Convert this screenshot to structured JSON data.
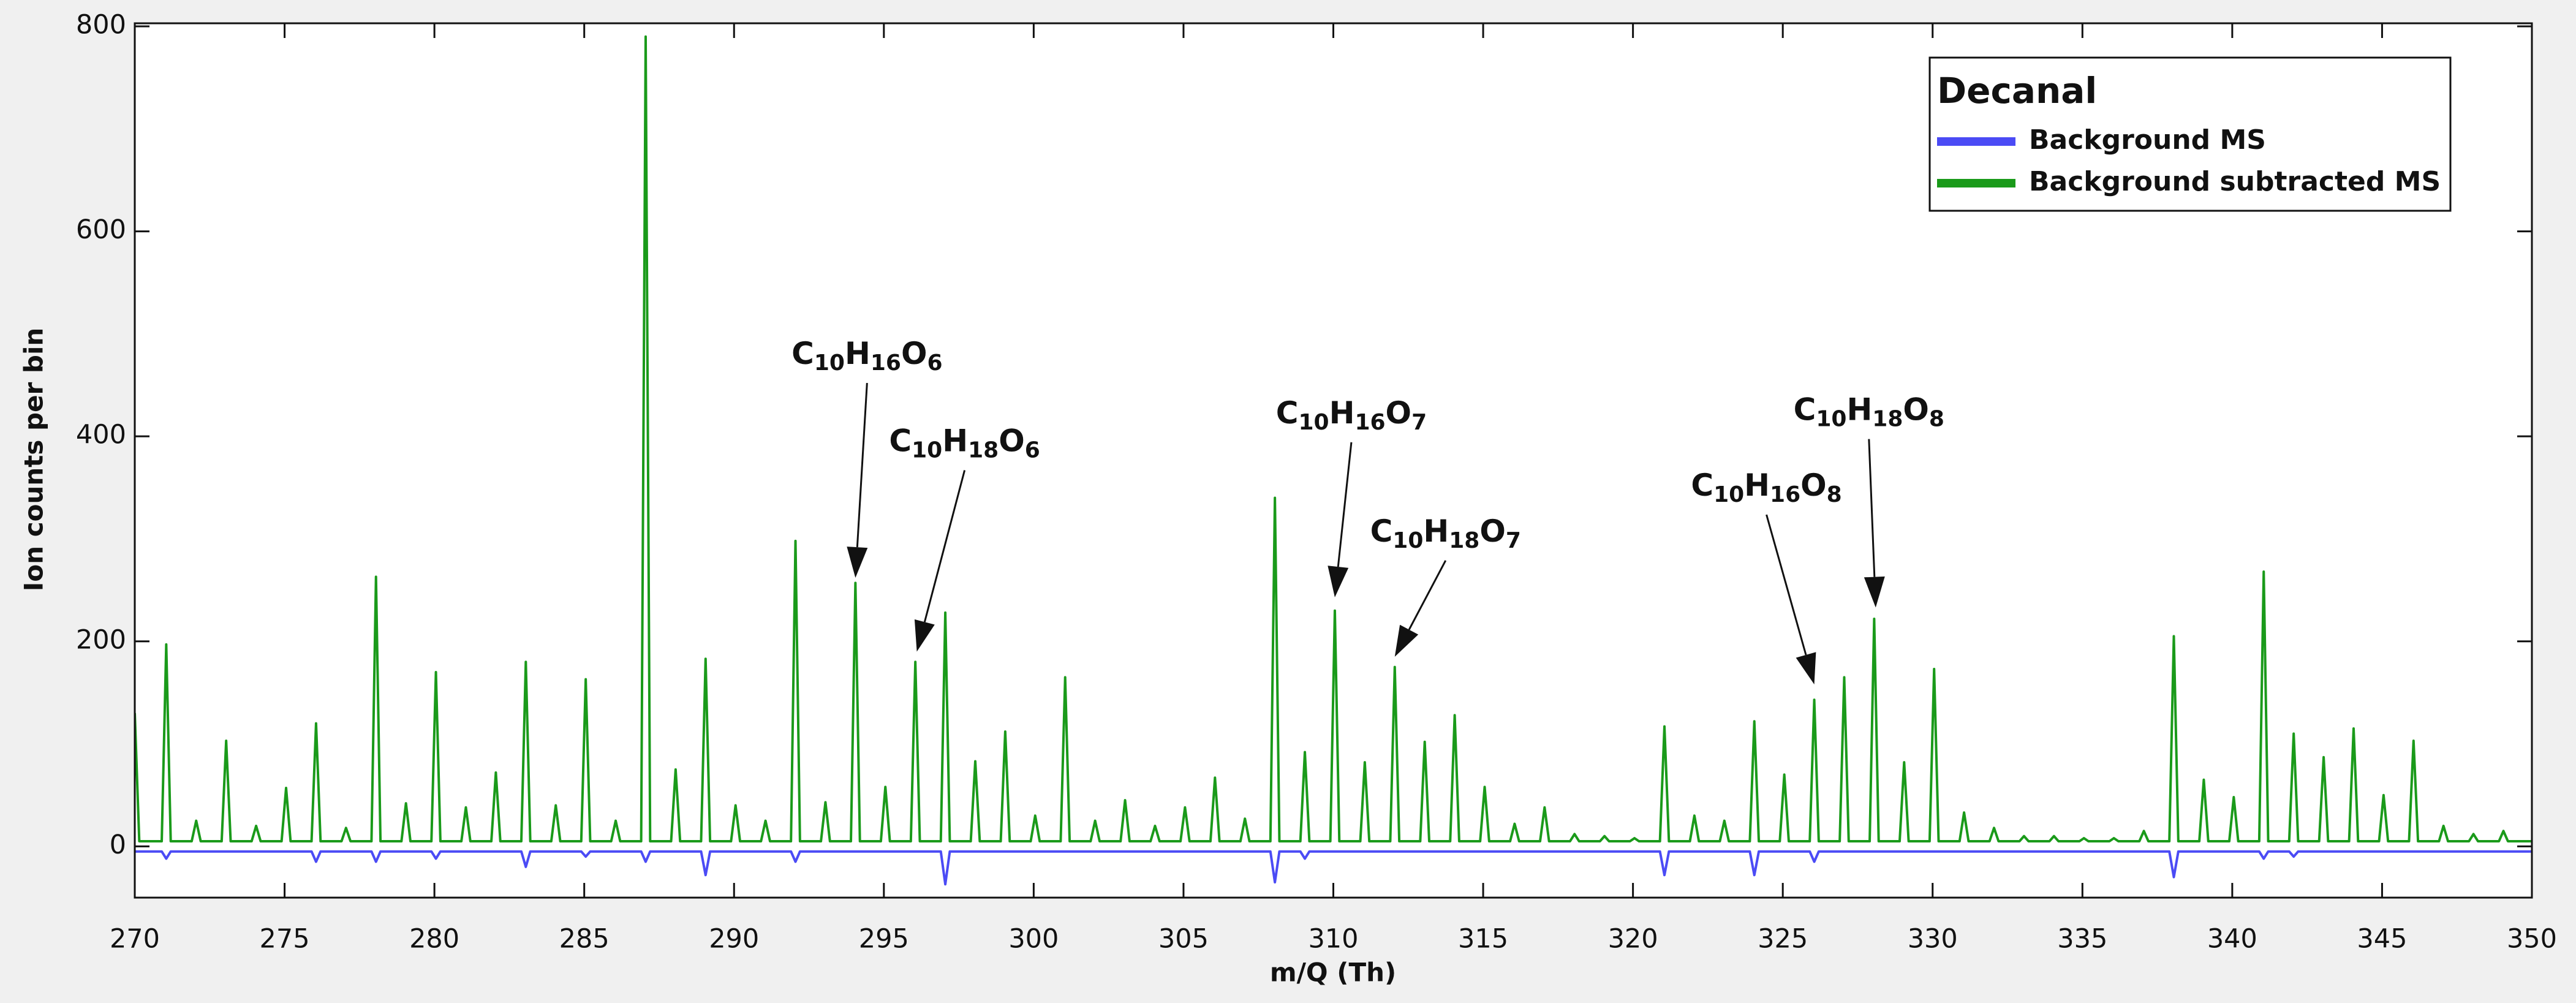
{
  "chart_data": {
    "type": "line",
    "xlabel": "m/Q (Th)",
    "ylabel": "Ion counts per bin",
    "xlim": [
      270,
      350
    ],
    "ylim": [
      -50,
      800
    ],
    "xticks": [
      270,
      275,
      280,
      285,
      290,
      295,
      300,
      305,
      310,
      315,
      320,
      325,
      330,
      335,
      340,
      345,
      350
    ],
    "yticks": [
      0,
      200,
      400,
      600,
      800
    ],
    "legend_title": "Decanal",
    "legend_position": "top-right",
    "series": [
      {
        "name": "Background MS",
        "color": "#4b4bf5",
        "x": [
          270,
          270.9,
          271.05,
          271.2,
          275.9,
          276.05,
          276.2,
          277.9,
          278.05,
          278.2,
          279.9,
          280.05,
          280.2,
          282.9,
          283.05,
          283.2,
          284.9,
          285.05,
          285.2,
          286.9,
          287.05,
          287.2,
          288.9,
          289.05,
          289.2,
          291.9,
          292.05,
          292.2,
          296.9,
          297.05,
          297.2,
          307.9,
          308.05,
          308.2,
          308.9,
          309.05,
          309.2,
          320.9,
          321.05,
          321.2,
          323.9,
          324.05,
          324.2,
          325.9,
          326.05,
          326.2,
          337.9,
          338.05,
          338.2,
          340.9,
          341.05,
          341.2,
          341.9,
          342.05,
          342.2,
          350
        ],
        "values": [
          -5,
          -5,
          -12,
          -5,
          -5,
          -15,
          -5,
          -5,
          -15,
          -5,
          -5,
          -12,
          -5,
          -5,
          -20,
          -5,
          -5,
          -10,
          -5,
          -5,
          -15,
          -5,
          -5,
          -28,
          -5,
          -5,
          -15,
          -5,
          -5,
          -37,
          -5,
          -5,
          -35,
          -5,
          -5,
          -12,
          -5,
          -5,
          -28,
          -5,
          -5,
          -28,
          -5,
          -5,
          -15,
          -5,
          -5,
          -30,
          -5,
          -5,
          -12,
          -5,
          -5,
          -10,
          -5,
          -5
        ]
      },
      {
        "name": "Background subtracted MS",
        "color": "#1a9a1a",
        "x": [
          270,
          270.15,
          270.9,
          271.05,
          271.2,
          271.9,
          272.05,
          272.2,
          272.9,
          273.05,
          273.2,
          273.9,
          274.05,
          274.2,
          274.9,
          275.05,
          275.2,
          275.9,
          276.05,
          276.2,
          276.9,
          277.05,
          277.2,
          277.9,
          278.05,
          278.2,
          278.9,
          279.05,
          279.2,
          279.9,
          280.05,
          280.2,
          280.9,
          281.05,
          281.2,
          281.9,
          282.05,
          282.2,
          282.9,
          283.05,
          283.2,
          283.9,
          284.05,
          284.2,
          284.9,
          285.05,
          285.2,
          285.9,
          286.05,
          286.2,
          286.9,
          287.05,
          287.2,
          287.9,
          288.05,
          288.2,
          288.9,
          289.05,
          289.2,
          289.9,
          290.05,
          290.2,
          290.9,
          291.05,
          291.2,
          291.9,
          292.05,
          292.2,
          292.9,
          293.05,
          293.2,
          293.9,
          294.05,
          294.2,
          294.9,
          295.05,
          295.2,
          295.9,
          296.05,
          296.2,
          296.9,
          297.05,
          297.2,
          297.9,
          298.05,
          298.2,
          298.9,
          299.05,
          299.2,
          299.9,
          300.05,
          300.2,
          300.9,
          301.05,
          301.2,
          301.9,
          302.05,
          302.2,
          302.9,
          303.05,
          303.2,
          303.9,
          304.05,
          304.2,
          304.9,
          305.05,
          305.2,
          305.9,
          306.05,
          306.2,
          306.9,
          307.05,
          307.2,
          307.9,
          308.05,
          308.2,
          308.9,
          309.05,
          309.2,
          309.9,
          310.05,
          310.2,
          310.9,
          311.05,
          311.2,
          311.9,
          312.05,
          312.2,
          312.9,
          313.05,
          313.2,
          313.9,
          314.05,
          314.2,
          314.9,
          315.05,
          315.2,
          315.9,
          316.05,
          316.2,
          316.9,
          317.05,
          317.2,
          317.9,
          318.05,
          318.2,
          318.9,
          319.05,
          319.2,
          319.9,
          320.05,
          320.2,
          320.9,
          321.05,
          321.2,
          321.9,
          322.05,
          322.2,
          322.9,
          323.05,
          323.2,
          323.9,
          324.05,
          324.2,
          324.9,
          325.05,
          325.2,
          325.9,
          326.05,
          326.2,
          326.9,
          327.05,
          327.2,
          327.9,
          328.05,
          328.2,
          328.9,
          329.05,
          329.2,
          329.9,
          330.05,
          330.2,
          330.9,
          331.05,
          331.2,
          331.9,
          332.05,
          332.2,
          332.9,
          333.05,
          333.2,
          333.9,
          334.05,
          334.2,
          334.9,
          335.05,
          335.2,
          335.9,
          336.05,
          336.2,
          336.9,
          337.05,
          337.2,
          337.9,
          338.05,
          338.2,
          338.9,
          339.05,
          339.2,
          339.9,
          340.05,
          340.2,
          340.9,
          341.05,
          341.2,
          341.9,
          342.05,
          342.2,
          342.9,
          343.05,
          343.2,
          343.9,
          344.05,
          344.2,
          344.9,
          345.05,
          345.2,
          345.9,
          346.05,
          346.2,
          346.9,
          347.05,
          347.2,
          347.9,
          348.05,
          348.2,
          348.9,
          349.05,
          349.2,
          350
        ],
        "values": [
          130,
          5,
          5,
          197,
          5,
          5,
          25,
          5,
          5,
          103,
          5,
          5,
          20,
          5,
          5,
          57,
          5,
          5,
          120,
          5,
          5,
          18,
          5,
          5,
          263,
          5,
          5,
          42,
          5,
          5,
          170,
          5,
          5,
          38,
          5,
          5,
          72,
          5,
          5,
          180,
          5,
          5,
          40,
          5,
          5,
          163,
          5,
          5,
          25,
          5,
          5,
          790,
          5,
          5,
          75,
          5,
          5,
          183,
          5,
          5,
          40,
          5,
          5,
          25,
          5,
          5,
          298,
          5,
          5,
          43,
          5,
          5,
          257,
          5,
          5,
          58,
          5,
          5,
          180,
          5,
          5,
          228,
          5,
          5,
          83,
          5,
          5,
          112,
          5,
          5,
          30,
          5,
          5,
          165,
          5,
          5,
          25,
          5,
          5,
          45,
          5,
          5,
          20,
          5,
          5,
          38,
          5,
          5,
          67,
          5,
          5,
          27,
          5,
          5,
          340,
          5,
          5,
          92,
          5,
          5,
          230,
          5,
          5,
          82,
          5,
          5,
          175,
          5,
          5,
          102,
          5,
          5,
          128,
          5,
          5,
          58,
          5,
          5,
          22,
          5,
          5,
          38,
          5,
          5,
          12,
          5,
          5,
          10,
          5,
          5,
          8,
          5,
          5,
          117,
          5,
          5,
          30,
          5,
          5,
          25,
          5,
          5,
          122,
          5,
          5,
          70,
          5,
          5,
          143,
          5,
          5,
          165,
          5,
          5,
          222,
          5,
          5,
          82,
          5,
          5,
          173,
          5,
          5,
          33,
          5,
          5,
          18,
          5,
          5,
          10,
          5,
          5,
          10,
          5,
          5,
          8,
          5,
          5,
          8,
          5,
          5,
          15,
          5,
          5,
          205,
          5,
          5,
          65,
          5,
          5,
          48,
          5,
          5,
          268,
          5,
          5,
          110,
          5,
          5,
          87,
          5,
          5,
          115,
          5,
          5,
          50,
          5,
          5,
          103,
          5,
          5,
          20,
          5,
          5,
          12,
          5,
          5,
          15,
          5,
          5
        ]
      }
    ],
    "annotations": [
      {
        "text": "C10H16O6",
        "x": 294.05,
        "y": 262
      },
      {
        "text": "C10H18O6",
        "x": 296.1,
        "y": 190
      },
      {
        "text": "C10H16O7",
        "x": 310.05,
        "y": 243
      },
      {
        "text": "C10H18O7",
        "x": 312.05,
        "y": 185
      },
      {
        "text": "C10H16O8",
        "x": 326.05,
        "y": 158
      },
      {
        "text": "C10H18O8",
        "x": 328.1,
        "y": 233
      }
    ]
  }
}
